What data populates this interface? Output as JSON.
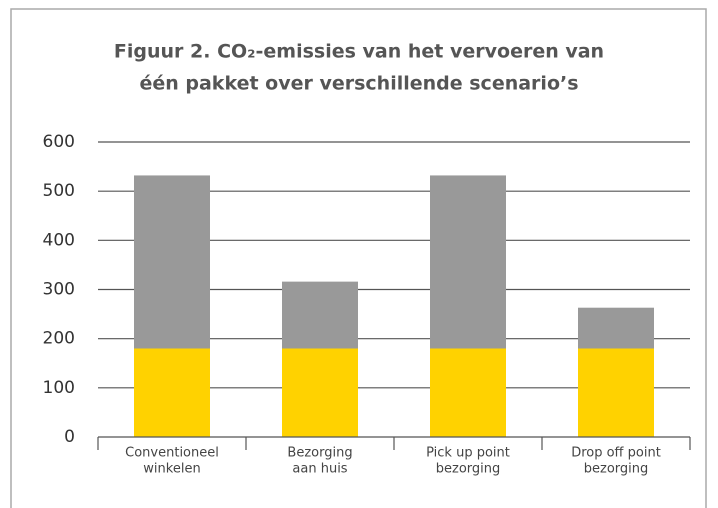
{
  "chart_data": {
    "type": "stacked_bar",
    "title": [
      "Figuur 2. CO₂-emissies van het vervoeren van",
      "één pakket over verschillende scenario’s"
    ],
    "categories": [
      [
        "Conventioneel",
        "winkelen"
      ],
      [
        "Bezorging",
        "aan huis"
      ],
      [
        "Pick up point",
        "bezorging"
      ],
      [
        "Drop off point",
        "bezorging"
      ]
    ],
    "series": [
      {
        "color": "#ffd200",
        "values": [
          180,
          180,
          180,
          180
        ]
      },
      {
        "color": "#999999",
        "values": [
          352,
          136,
          352,
          83
        ]
      }
    ],
    "ylim": [
      0,
      600
    ],
    "yticks": [
      0,
      100,
      200,
      300,
      400,
      500,
      600
    ],
    "grid": true
  }
}
